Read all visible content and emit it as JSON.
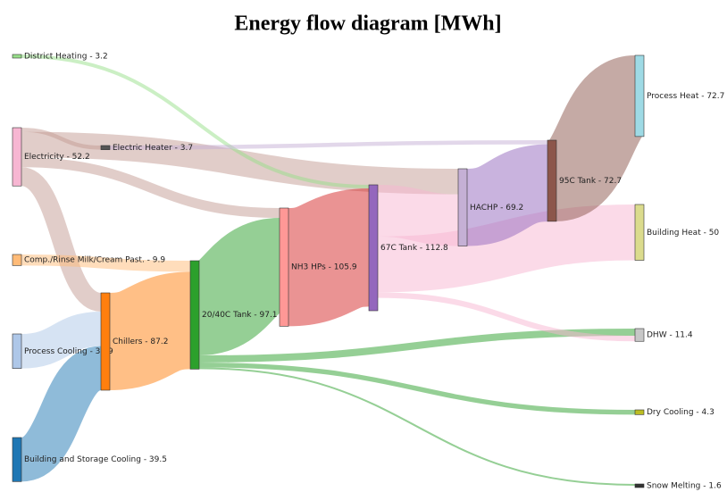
{
  "chart_data": {
    "type": "sankey",
    "title": "Energy flow diagram [MWh]",
    "nodes": [
      {
        "label": "District Heating - 3.2",
        "value": 3.2,
        "color": "#98df8a"
      },
      {
        "label": "Electricity - 52.2",
        "value": 52.2,
        "color": "#f7b6d2"
      },
      {
        "label": "Comp./Rinse Milk/Cream Past. - 9.9",
        "value": 9.9,
        "color": "#ffbb78"
      },
      {
        "label": "Process Cooling - 30.9",
        "value": 30.9,
        "color": "#aec7e8"
      },
      {
        "label": "Building and Storage Cooling - 39.5",
        "value": 39.5,
        "color": "#1f77b4"
      },
      {
        "label": "Electric Heater - 3.7",
        "value": 3.7,
        "color": "#555555"
      },
      {
        "label": "Chillers - 87.2",
        "value": 87.2,
        "color": "#ff7f0e"
      },
      {
        "label": "20/40C Tank - 97.1",
        "value": 97.1,
        "color": "#2ca02c"
      },
      {
        "label": "NH3 HPs - 105.9",
        "value": 105.9,
        "color": "#ff9896"
      },
      {
        "label": "67C Tank - 112.8",
        "value": 112.8,
        "color": "#9467bd"
      },
      {
        "label": "HACHP - 69.2",
        "value": 69.2,
        "color": "#c5b0d5"
      },
      {
        "label": "95C Tank - 72.7",
        "value": 72.7,
        "color": "#8c564b"
      },
      {
        "label": "Process Heat - 72.7",
        "value": 72.7,
        "color": "#9edae5"
      },
      {
        "label": "Building Heat - 50",
        "value": 50,
        "color": "#dbdb8d"
      },
      {
        "label": "DHW - 11.4",
        "value": 11.4,
        "color": "#c7c7c7"
      },
      {
        "label": "Dry Cooling - 4.3",
        "value": 4.3,
        "color": "#bcbd22"
      },
      {
        "label": "Snow Melting - 1.6",
        "value": 1.6,
        "color": "#333333"
      }
    ],
    "links": [
      {
        "source": 1,
        "target": 5,
        "value": 3.7,
        "color": "#c49c94"
      },
      {
        "source": 1,
        "target": 10,
        "value": 22.9,
        "color": "#c49c94"
      },
      {
        "source": 1,
        "target": 8,
        "value": 8.8,
        "color": "#c49c94"
      },
      {
        "source": 1,
        "target": 6,
        "value": 16.8,
        "color": "#c49c94"
      },
      {
        "source": 0,
        "target": 9,
        "value": 3.2,
        "color": "#98df8a"
      },
      {
        "source": 2,
        "target": 7,
        "value": 9.9,
        "color": "#ffbb78"
      },
      {
        "source": 3,
        "target": 6,
        "value": 30.9,
        "color": "#aec7e8"
      },
      {
        "source": 4,
        "target": 6,
        "value": 39.5,
        "color": "#1f77b4"
      },
      {
        "source": 6,
        "target": 7,
        "value": 87.2,
        "color": "#ff7f0e"
      },
      {
        "source": 7,
        "target": 8,
        "value": 84.8,
        "color": "#2ca02c"
      },
      {
        "source": 7,
        "target": 14,
        "value": 6.4,
        "color": "#2ca02c"
      },
      {
        "source": 7,
        "target": 15,
        "value": 4.3,
        "color": "#2ca02c"
      },
      {
        "source": 7,
        "target": 16,
        "value": 1.6,
        "color": "#2ca02c"
      },
      {
        "source": 8,
        "target": 9,
        "value": 105.9,
        "color": "#d62728"
      },
      {
        "source": 5,
        "target": 11,
        "value": 3.7,
        "color": "#c5b0d5"
      },
      {
        "source": 9,
        "target": 10,
        "value": 46.3,
        "color": "#f7b6d2"
      },
      {
        "source": 9,
        "target": 13,
        "value": 50,
        "color": "#f7b6d2"
      },
      {
        "source": 9,
        "target": 14,
        "value": 5,
        "color": "#f7b6d2"
      },
      {
        "source": 10,
        "target": 11,
        "value": 69.2,
        "color": "#9467bd"
      },
      {
        "source": 11,
        "target": 12,
        "value": 72.7,
        "color": "#8c564b"
      }
    ]
  }
}
